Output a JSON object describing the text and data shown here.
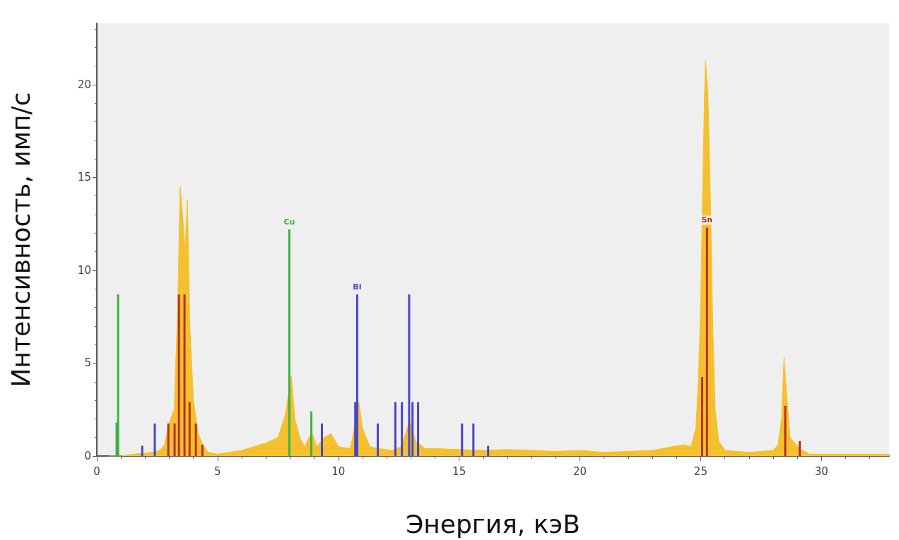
{
  "chart_data": {
    "type": "area",
    "xlabel": "Энергия, кэВ",
    "ylabel": "Интенсивность, имп/с",
    "xlim": [
      0,
      32.8
    ],
    "xticks": [
      0,
      5,
      10,
      15,
      20,
      25,
      30
    ],
    "ylim": [
      0,
      23.3
    ],
    "yticks": [
      0,
      5,
      10,
      15,
      20
    ],
    "grid": false,
    "legend": false,
    "marker": "none",
    "series": [
      {
        "color": "#f5c02e",
        "x": [
          0.5,
          1.0,
          1.5,
          2.0,
          2.3,
          2.6,
          2.8,
          3.0,
          3.2,
          3.35,
          3.45,
          3.55,
          3.65,
          3.75,
          3.85,
          4.0,
          4.2,
          4.4,
          4.6,
          5.0,
          5.5,
          6.0,
          6.5,
          7.0,
          7.5,
          7.8,
          8.05,
          8.2,
          8.4,
          8.6,
          8.9,
          9.1,
          9.4,
          9.7,
          10.0,
          10.5,
          10.85,
          11.0,
          11.3,
          11.7,
          12.2,
          12.6,
          12.95,
          13.2,
          13.6,
          14,
          15,
          16,
          17,
          18,
          19,
          20,
          21,
          22,
          23,
          23.8,
          24.3,
          24.6,
          24.8,
          24.9,
          25.0,
          25.05,
          25.15,
          25.2,
          25.3,
          25.4,
          25.5,
          25.6,
          25.75,
          26,
          27,
          28,
          28.2,
          28.35,
          28.45,
          28.55,
          28.7,
          28.9,
          29.1,
          29.5,
          30,
          31,
          32,
          32.8
        ],
        "values": [
          0,
          0,
          0.1,
          0.15,
          0.2,
          0.3,
          0.6,
          1.8,
          2.5,
          8,
          14.5,
          13,
          11,
          13.8,
          7,
          3,
          1.2,
          0.6,
          0.2,
          0.1,
          0.2,
          0.3,
          0.5,
          0.7,
          1.0,
          2.2,
          4.3,
          2.0,
          1.0,
          0.5,
          1.3,
          0.5,
          1.0,
          1.2,
          0.5,
          0.4,
          2.9,
          1.5,
          0.5,
          0.4,
          0.3,
          0.5,
          1.9,
          0.8,
          0.4,
          0.4,
          0.35,
          0.3,
          0.35,
          0.3,
          0.25,
          0.3,
          0.2,
          0.25,
          0.3,
          0.5,
          0.6,
          0.5,
          1.5,
          4,
          8,
          12,
          19,
          21.3,
          19.5,
          14,
          7,
          2.5,
          0.8,
          0.3,
          0.2,
          0.3,
          0.6,
          2,
          5.3,
          3.5,
          1,
          0.7,
          0.4,
          0.1,
          0.1,
          0.1,
          0.1,
          0.1
        ]
      },
      {
        "type": "bar",
        "name": "Cu",
        "color": "#3cb043",
        "x": [
          0.82,
          0.88,
          7.97,
          8.88
        ],
        "values": [
          1.8,
          8.7,
          12.2,
          2.4
        ]
      },
      {
        "type": "bar",
        "name": "Bi",
        "color": "#4646c8",
        "x": [
          1.88,
          2.4,
          9.32,
          10.7,
          10.78,
          11.63,
          12.36,
          12.63,
          12.93,
          13.07,
          13.3,
          15.12,
          15.59,
          16.2
        ],
        "values": [
          0.55,
          1.75,
          1.75,
          2.9,
          8.7,
          1.75,
          2.9,
          2.9,
          8.7,
          2.9,
          2.9,
          1.75,
          1.75,
          0.55
        ]
      },
      {
        "type": "bar",
        "name": "Sn",
        "color": "#b8301a",
        "x": [
          2.96,
          3.22,
          3.4,
          3.63,
          3.84,
          4.1,
          4.37,
          25.06,
          25.26,
          28.5,
          29.1
        ],
        "values": [
          1.75,
          1.75,
          8.7,
          8.7,
          2.9,
          1.75,
          0.6,
          4.25,
          12.3,
          2.7,
          0.8
        ]
      }
    ]
  }
}
